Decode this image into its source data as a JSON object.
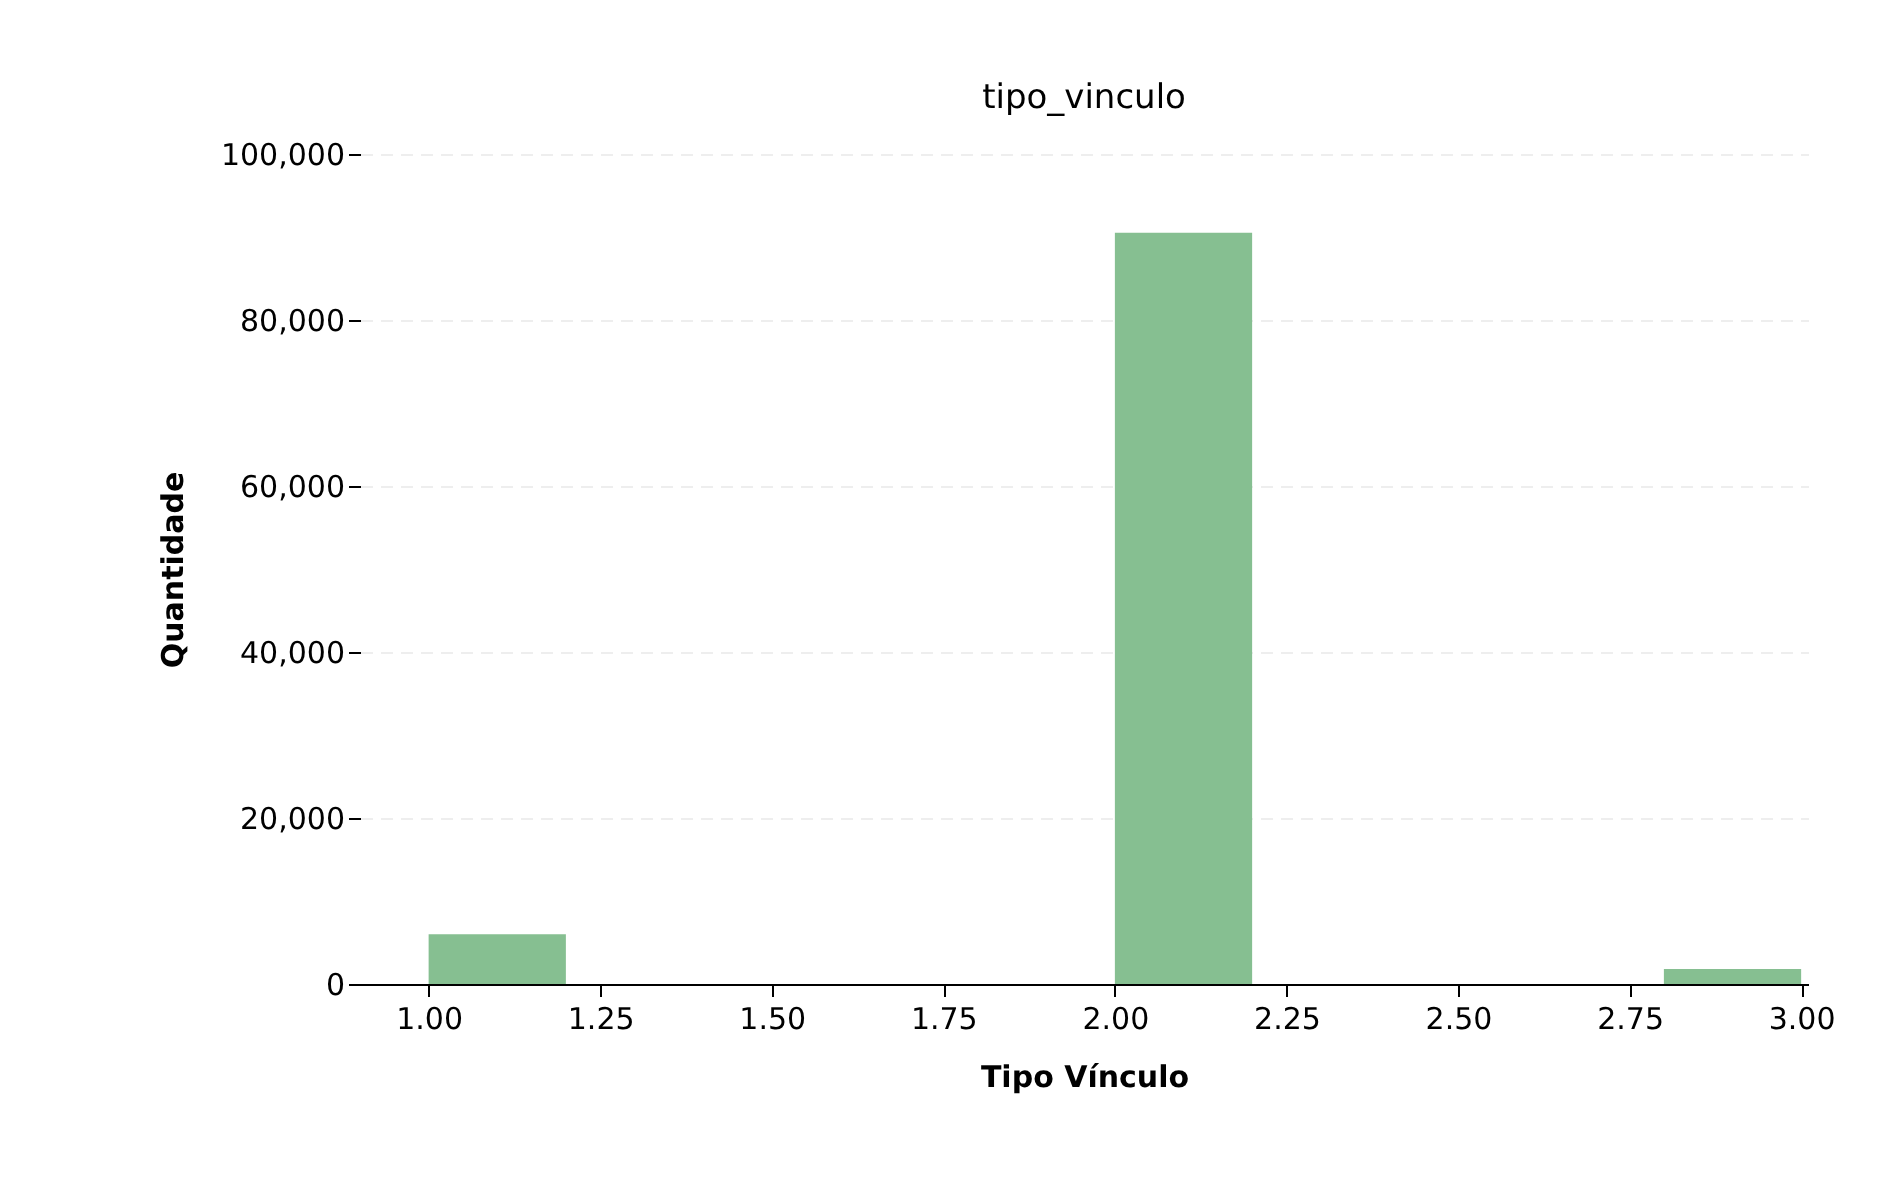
{
  "chart_data": {
    "type": "histogram",
    "title": "tipo_vinculo",
    "xlabel": "Tipo Vínculo",
    "ylabel": "Quantidade",
    "bins": [
      1.0,
      1.2,
      1.4,
      1.6,
      1.8,
      2.0,
      2.2,
      2.4,
      2.6,
      2.8,
      3.0
    ],
    "values": [
      6000,
      0,
      0,
      0,
      0,
      90500,
      0,
      0,
      0,
      1800
    ],
    "color": "#86bf91",
    "xlim": [
      0.9,
      3.01
    ],
    "xticks": [
      {
        "value": 1,
        "label": "1.00"
      },
      {
        "value": 1.25,
        "label": "1.25"
      },
      {
        "value": 1.5,
        "label": "1.50"
      },
      {
        "value": 1.75,
        "label": "1.75"
      },
      {
        "value": 2,
        "label": "2.00"
      },
      {
        "value": 2.25,
        "label": "2.25"
      },
      {
        "value": 2.5,
        "label": "2.50"
      },
      {
        "value": 2.75,
        "label": "2.75"
      },
      {
        "value": 3,
        "label": "3.00"
      }
    ],
    "ylim": [
      0,
      100000
    ],
    "yticks": [
      {
        "value": 0,
        "label": "0"
      },
      {
        "value": 20000,
        "label": "20,000"
      },
      {
        "value": 40000,
        "label": "40,000"
      },
      {
        "value": 60000,
        "label": "60,000"
      },
      {
        "value": 80000,
        "label": "80,000"
      },
      {
        "value": 100000,
        "label": "100,000"
      }
    ],
    "grid": "y"
  }
}
